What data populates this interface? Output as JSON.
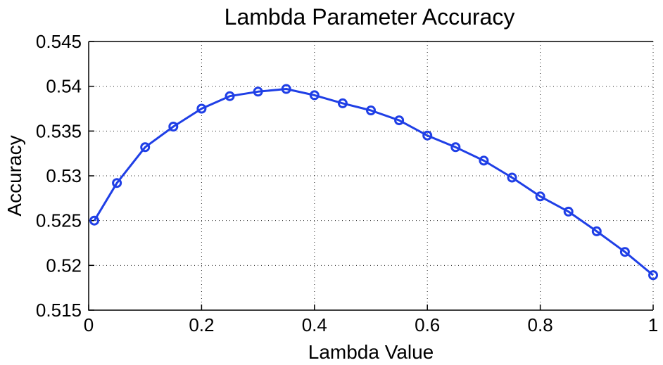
{
  "chart_data": {
    "type": "line",
    "title": "Lambda Parameter Accuracy",
    "xlabel": "Lambda Value",
    "ylabel": "Accuracy",
    "xlim": [
      0,
      1
    ],
    "ylim": [
      0.515,
      0.545
    ],
    "x_ticks": [
      0,
      0.2,
      0.4,
      0.6,
      0.8,
      1
    ],
    "x_tick_labels": [
      "0",
      "0.2",
      "0.4",
      "0.6",
      "0.8",
      "1"
    ],
    "y_ticks": [
      0.515,
      0.52,
      0.525,
      0.53,
      0.535,
      0.54,
      0.545
    ],
    "y_tick_labels": [
      "0.515",
      "0.52",
      "0.525",
      "0.53",
      "0.535",
      "0.54",
      "0.545"
    ],
    "grid": true,
    "series": [
      {
        "color": "#1f3fe6",
        "marker": "circle",
        "x": [
          0.01,
          0.05,
          0.1,
          0.15,
          0.2,
          0.25,
          0.3,
          0.35,
          0.4,
          0.45,
          0.5,
          0.55,
          0.6,
          0.65,
          0.7,
          0.75,
          0.8,
          0.85,
          0.9,
          0.95,
          1.0
        ],
        "y": [
          0.525,
          0.5292,
          0.5332,
          0.5355,
          0.5375,
          0.5389,
          0.5394,
          0.5397,
          0.539,
          0.5381,
          0.5373,
          0.5362,
          0.5345,
          0.5332,
          0.5317,
          0.5298,
          0.5277,
          0.526,
          0.5238,
          0.5215,
          0.5189
        ]
      }
    ]
  }
}
